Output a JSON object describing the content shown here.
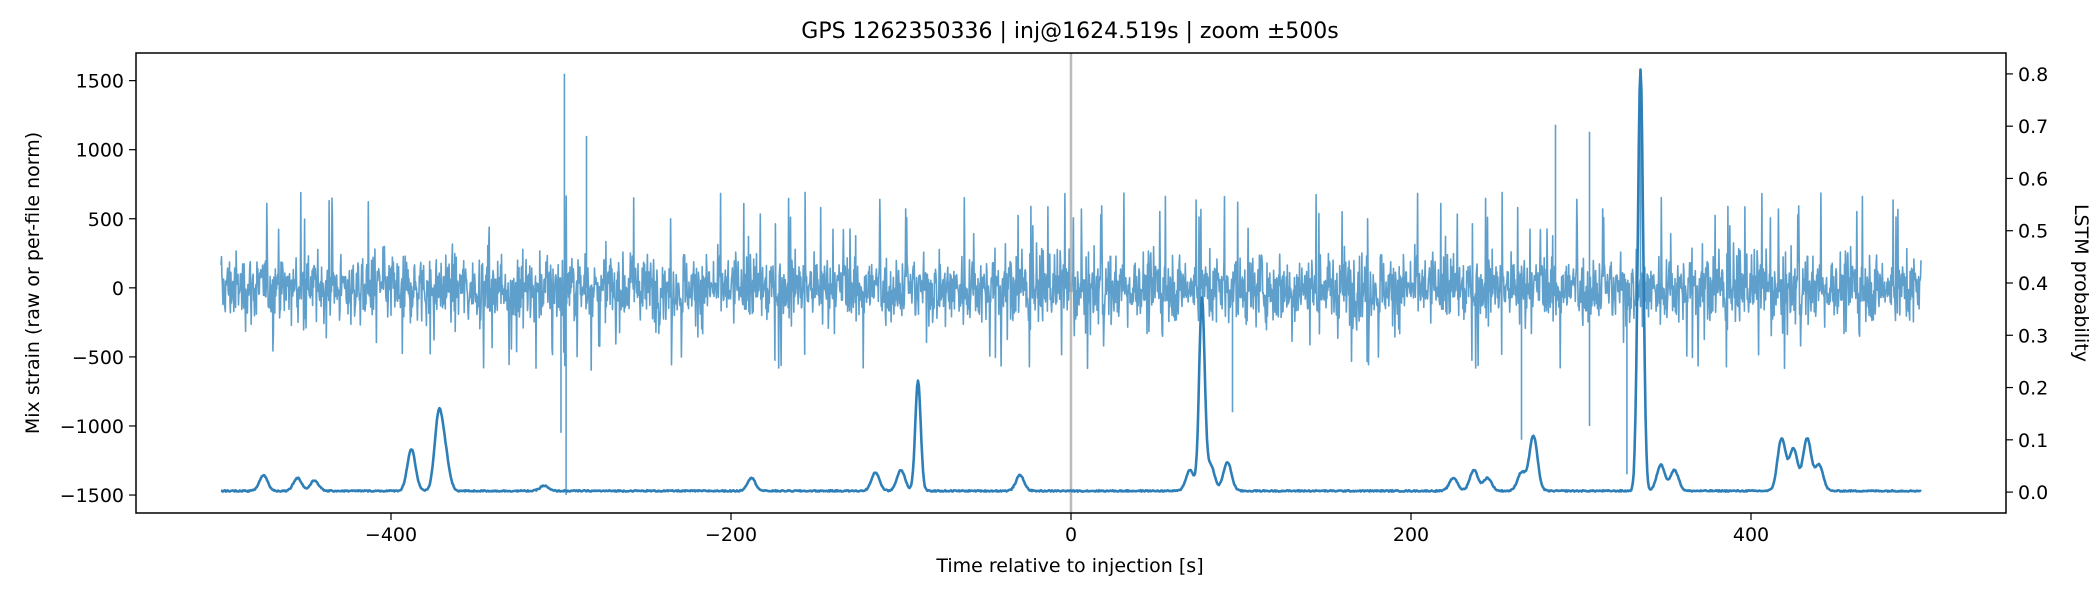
{
  "chart_data": {
    "type": "line",
    "title": "GPS 1262350336 | inj@1624.519s | zoom ±500s",
    "xlabel": "Time relative to injection [s]",
    "ylabel_left": "Mix strain (raw or per-file norm)",
    "ylabel_right": "LSTM probability",
    "xlim": [
      -550,
      550
    ],
    "ylim_left": [
      -1630,
      1700
    ],
    "ylim_right": [
      -0.04,
      0.84
    ],
    "x_ticks": [
      -400,
      -200,
      0,
      200,
      400
    ],
    "y_left_ticks": [
      -1500,
      -1000,
      -500,
      0,
      500,
      1000,
      1500
    ],
    "y_right_ticks": [
      0.0,
      0.1,
      0.2,
      0.3,
      0.4,
      0.5,
      0.6,
      0.7,
      0.8
    ],
    "x_tick_labels": [
      "−400",
      "−200",
      "0",
      "200",
      "400"
    ],
    "y_left_tick_labels": [
      "−1500",
      "−1000",
      "−500",
      "0",
      "500",
      "1000",
      "1500"
    ],
    "y_right_tick_labels": [
      "0.0",
      "0.1",
      "0.2",
      "0.3",
      "0.4",
      "0.5",
      "0.6",
      "0.7",
      "0.8"
    ],
    "injection_marker_x": 0,
    "grid": false,
    "colors": {
      "strain": "#5f9fcb",
      "probability": "#2e7fb8",
      "marker": "#aaaaaa"
    },
    "strain_series": {
      "x_range": [
        -500,
        500
      ],
      "typical_envelope": [
        -600,
        700
      ],
      "spikes": [
        {
          "x": -298,
          "y": 1550
        },
        {
          "x": -297,
          "y": -1500
        },
        {
          "x": -285,
          "y": 1100
        },
        {
          "x": -300,
          "y": -1050
        },
        {
          "x": 285,
          "y": 1180
        },
        {
          "x": 305,
          "y": 1130
        },
        {
          "x": 335,
          "y": 1550
        },
        {
          "x": 327,
          "y": -1350
        },
        {
          "x": 265,
          "y": -1100
        },
        {
          "x": 305,
          "y": -1000
        },
        {
          "x": 95,
          "y": -900
        }
      ]
    },
    "probability_peaks": [
      {
        "x": -475,
        "y": 0.03
      },
      {
        "x": -455,
        "y": 0.025
      },
      {
        "x": -445,
        "y": 0.02
      },
      {
        "x": -388,
        "y": 0.08
      },
      {
        "x": -372,
        "y": 0.14
      },
      {
        "x": -368,
        "y": 0.06
      },
      {
        "x": -310,
        "y": 0.01
      },
      {
        "x": -188,
        "y": 0.025
      },
      {
        "x": -115,
        "y": 0.035
      },
      {
        "x": -100,
        "y": 0.04
      },
      {
        "x": -90,
        "y": 0.21
      },
      {
        "x": -30,
        "y": 0.03
      },
      {
        "x": 70,
        "y": 0.04
      },
      {
        "x": 77,
        "y": 0.365
      },
      {
        "x": 82,
        "y": 0.05
      },
      {
        "x": 92,
        "y": 0.055
      },
      {
        "x": 225,
        "y": 0.025
      },
      {
        "x": 237,
        "y": 0.04
      },
      {
        "x": 245,
        "y": 0.025
      },
      {
        "x": 265,
        "y": 0.035
      },
      {
        "x": 272,
        "y": 0.105
      },
      {
        "x": 335,
        "y": 0.805
      },
      {
        "x": 347,
        "y": 0.05
      },
      {
        "x": 355,
        "y": 0.04
      },
      {
        "x": 418,
        "y": 0.1
      },
      {
        "x": 425,
        "y": 0.08
      },
      {
        "x": 433,
        "y": 0.1
      },
      {
        "x": 440,
        "y": 0.05
      }
    ]
  }
}
